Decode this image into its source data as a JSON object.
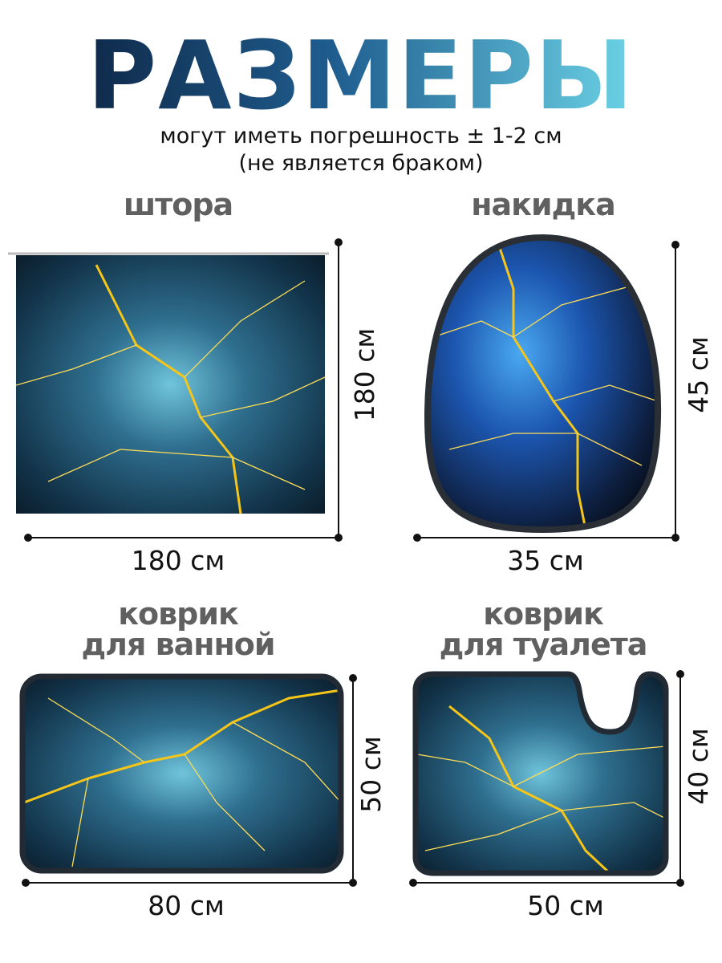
{
  "header": {
    "title": "РАЗМЕРЫ",
    "subtitle": [
      "могут иметь погрешность ±  1-2 см",
      "(не является браком)"
    ]
  },
  "items": [
    {
      "label": [
        "штора"
      ],
      "width": "180 см",
      "height": "180 см"
    },
    {
      "label": [
        "накидка"
      ],
      "width": "35 см",
      "height": "45 см"
    },
    {
      "label": [
        "коврик",
        "для ванной"
      ],
      "width": "80 см",
      "height": "50 см"
    },
    {
      "label": [
        "коврик",
        "для туалета"
      ],
      "width": "50 см",
      "height": "40 см"
    }
  ]
}
